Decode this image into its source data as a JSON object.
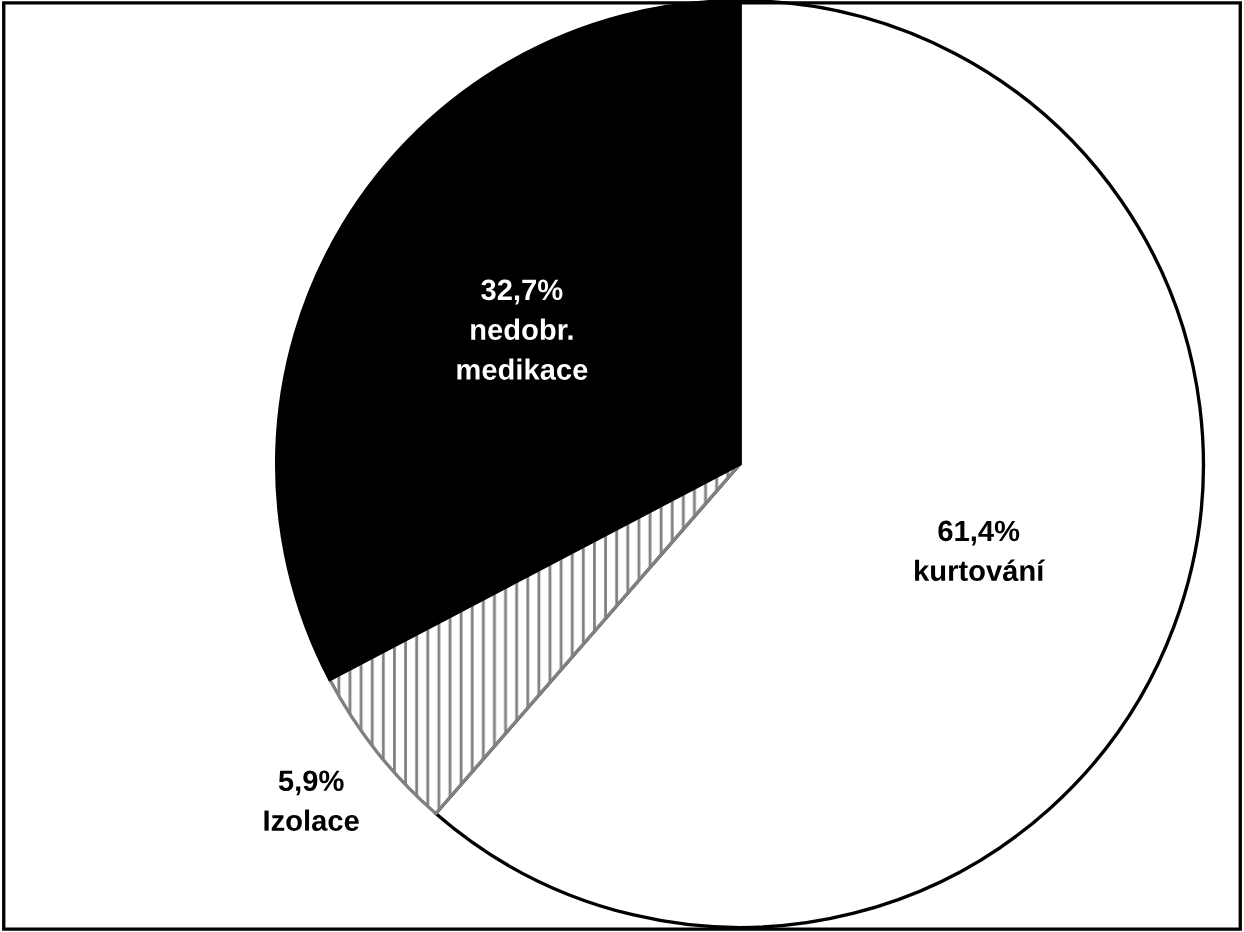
{
  "chart_data": {
    "type": "pie",
    "categories": [
      "kurtování",
      "Izolace",
      "nedobr. medikace"
    ],
    "values": [
      61.4,
      5.9,
      32.7
    ],
    "value_labels": [
      "61,4%",
      "5,9%",
      "32,7%"
    ],
    "colors": [
      "#ffffff",
      "#808080",
      "#000000"
    ],
    "legend": false
  }
}
